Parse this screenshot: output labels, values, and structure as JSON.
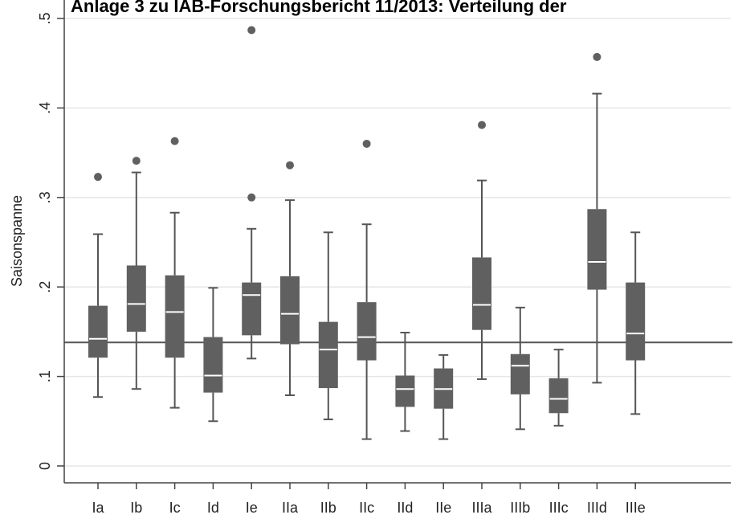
{
  "chart_data": {
    "type": "box",
    "title": "Anlage 3 zu IAB-Forschungsbericht 11/2013: Verteilung der",
    "ylabel": "Saisonspanne",
    "xlabel": "",
    "ylim": [
      -0.02,
      0.52
    ],
    "y_ticks": [
      0,
      0.1,
      0.2,
      0.3,
      0.4,
      0.5
    ],
    "y_tick_labels": [
      "0",
      ".1",
      ".2",
      ".3",
      ".4",
      ".5"
    ],
    "reference_line": 0.138,
    "grid": true,
    "colors": {
      "box": "#606060",
      "median": "#ffffff",
      "line": "#555555",
      "grid": "#e6e6e6"
    },
    "categories": [
      "Ia",
      "Ib",
      "Ic",
      "Id",
      "Ie",
      "IIa",
      "IIb",
      "IIc",
      "IId",
      "IIe",
      "IIIa",
      "IIIb",
      "IIIc",
      "IIId",
      "IIIe"
    ],
    "boxes": [
      {
        "low": 0.077,
        "q1": 0.121,
        "median": 0.142,
        "q3": 0.179,
        "high": 0.259,
        "outliers": [
          0.323
        ]
      },
      {
        "low": 0.086,
        "q1": 0.15,
        "median": 0.181,
        "q3": 0.224,
        "high": 0.328,
        "outliers": [
          0.341
        ]
      },
      {
        "low": 0.065,
        "q1": 0.121,
        "median": 0.172,
        "q3": 0.213,
        "high": 0.283,
        "outliers": [
          0.363
        ]
      },
      {
        "low": 0.05,
        "q1": 0.082,
        "median": 0.101,
        "q3": 0.144,
        "high": 0.199,
        "outliers": []
      },
      {
        "low": 0.12,
        "q1": 0.146,
        "median": 0.191,
        "q3": 0.205,
        "high": 0.265,
        "outliers": [
          0.3,
          0.487
        ]
      },
      {
        "low": 0.079,
        "q1": 0.136,
        "median": 0.17,
        "q3": 0.212,
        "high": 0.297,
        "outliers": [
          0.336
        ]
      },
      {
        "low": 0.052,
        "q1": 0.087,
        "median": 0.13,
        "q3": 0.161,
        "high": 0.261,
        "outliers": []
      },
      {
        "low": 0.03,
        "q1": 0.118,
        "median": 0.144,
        "q3": 0.183,
        "high": 0.27,
        "outliers": [
          0.36
        ]
      },
      {
        "low": 0.039,
        "q1": 0.066,
        "median": 0.086,
        "q3": 0.101,
        "high": 0.149,
        "outliers": []
      },
      {
        "low": 0.03,
        "q1": 0.064,
        "median": 0.086,
        "q3": 0.109,
        "high": 0.124,
        "outliers": []
      },
      {
        "low": 0.097,
        "q1": 0.152,
        "median": 0.18,
        "q3": 0.233,
        "high": 0.319,
        "outliers": [
          0.381
        ]
      },
      {
        "low": 0.041,
        "q1": 0.08,
        "median": 0.112,
        "q3": 0.125,
        "high": 0.177,
        "outliers": []
      },
      {
        "low": 0.045,
        "q1": 0.059,
        "median": 0.075,
        "q3": 0.098,
        "high": 0.13,
        "outliers": []
      },
      {
        "low": 0.093,
        "q1": 0.197,
        "median": 0.228,
        "q3": 0.287,
        "high": 0.416,
        "outliers": [
          0.457
        ]
      },
      {
        "low": 0.058,
        "q1": 0.118,
        "median": 0.148,
        "q3": 0.205,
        "high": 0.261,
        "outliers": []
      }
    ]
  }
}
